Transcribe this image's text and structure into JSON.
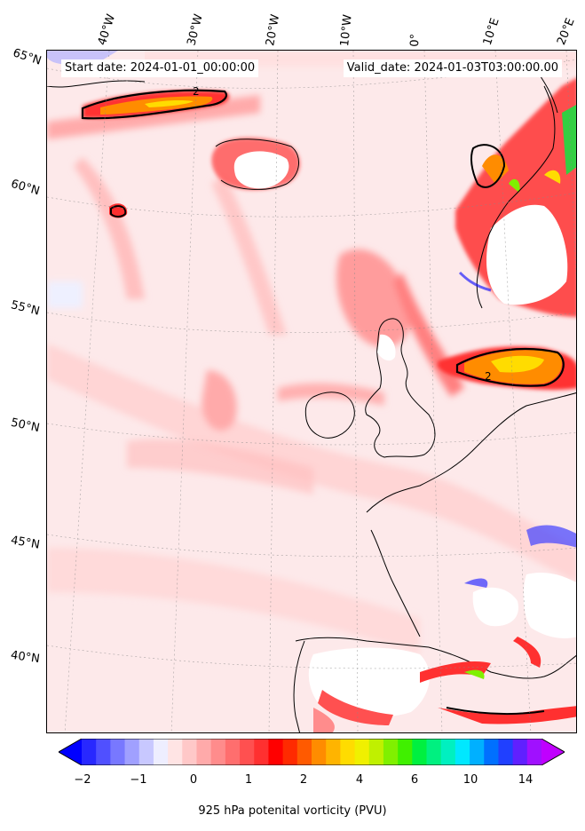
{
  "map": {
    "start_label": "Start date: 2024-01-01_00:00:00",
    "valid_label": "Valid_date: 2024-01-03T03:00:00.00",
    "contour_label": "2",
    "longitudes": [
      "40°W",
      "30°W",
      "20°W",
      "10°W",
      "0°",
      "10°E",
      "20°E"
    ],
    "latitudes": [
      "65°N",
      "60°N",
      "55°N",
      "50°N",
      "45°N",
      "40°N"
    ]
  },
  "colorbar": {
    "ticks": [
      "−2",
      "−1",
      "0",
      "1",
      "2",
      "4",
      "6",
      "10",
      "14"
    ],
    "label": "925 hPa potenital vorticity (PVU)",
    "colors": [
      "#0000ff",
      "#2828ff",
      "#5050ff",
      "#7878ff",
      "#a0a0ff",
      "#c8c8ff",
      "#eeeeff",
      "#ffe4e4",
      "#ffc8c8",
      "#ffaaaa",
      "#ff8c8c",
      "#ff6e6e",
      "#ff5050",
      "#ff3030",
      "#ff0000",
      "#ff2a00",
      "#ff5a00",
      "#ff8c00",
      "#ffb400",
      "#ffdc00",
      "#f0f000",
      "#c0f000",
      "#80f000",
      "#40f000",
      "#00f040",
      "#00f080",
      "#00f0c0",
      "#00e8ff",
      "#00b0ff",
      "#0070ff",
      "#2040ff",
      "#6020ff",
      "#a010ff",
      "#c000ff"
    ]
  }
}
